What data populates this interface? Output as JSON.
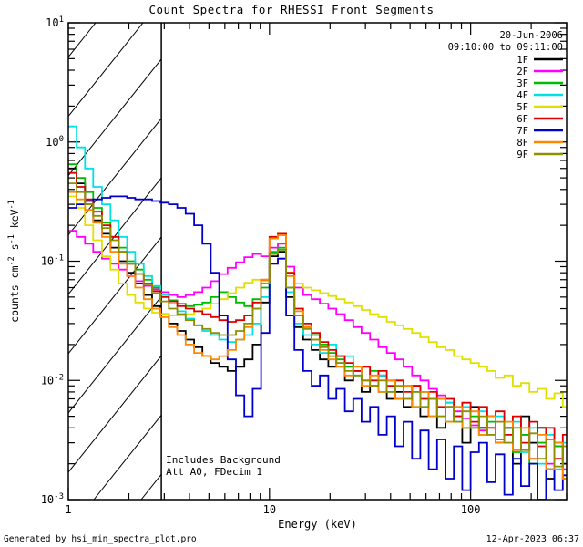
{
  "page": {
    "background": "#ffffff",
    "frame_color": "#000000"
  },
  "footer": {
    "left": "Generated by hsi_min_spectra_plot.pro",
    "right": "12-Apr-2023 06:37"
  },
  "chart_data": {
    "type": "line",
    "title": "Count Spectra for RHESSI Front Segments",
    "xlabel": "Energy (keV)",
    "ylabel": "counts cm^-2 s^-1 keV^-1",
    "ylabel_parts": [
      {
        "text": "counts cm"
      },
      {
        "text": "-2",
        "sup": true
      },
      {
        "text": " s"
      },
      {
        "text": "-1",
        "sup": true
      },
      {
        "text": " keV"
      },
      {
        "text": "-1",
        "sup": true
      }
    ],
    "xscale": "log",
    "yscale": "log",
    "xlim": [
      1,
      300
    ],
    "ylim": [
      0.001,
      10
    ],
    "grid": false,
    "legend_position": "top-right",
    "legend": {
      "date": "20-Jun-2006",
      "time": "09:10:00 to 09:11:00"
    },
    "annotations": [
      "Includes Background",
      "Att A0, FDecim 1"
    ],
    "hatch_region": {
      "xmin": 1,
      "xmax": 2.9
    },
    "x_ticks": [
      {
        "value": 1,
        "label": "1"
      },
      {
        "value": 10,
        "label": "10"
      },
      {
        "value": 100,
        "label": "100"
      }
    ],
    "y_ticks": [
      {
        "value": 10,
        "base": "10",
        "exp": "1"
      },
      {
        "value": 1,
        "base": "10",
        "exp": "0"
      },
      {
        "value": 0.1,
        "base": "10",
        "exp": "-1"
      },
      {
        "value": 0.01,
        "base": "10",
        "exp": "-2"
      },
      {
        "value": 0.001,
        "base": "10",
        "exp": "-3"
      }
    ],
    "x": [
      1.0,
      1.1,
      1.21,
      1.33,
      1.47,
      1.62,
      1.78,
      1.96,
      2.15,
      2.37,
      2.61,
      2.87,
      3.16,
      3.48,
      3.83,
      4.22,
      4.64,
      5.11,
      5.62,
      6.19,
      6.81,
      7.5,
      8.25,
      9.08,
      10.0,
      11.0,
      12.1,
      13.3,
      14.7,
      16.2,
      17.8,
      19.6,
      21.5,
      23.7,
      26.1,
      28.7,
      31.6,
      34.8,
      38.3,
      42.2,
      46.4,
      51.1,
      56.2,
      61.9,
      68.1,
      75.0,
      82.5,
      90.8,
      100,
      110,
      121,
      133,
      147,
      162,
      178,
      196,
      215,
      237,
      261,
      287
    ],
    "series": [
      {
        "name": "1F",
        "color": "#000000",
        "values": [
          0.6,
          0.45,
          0.3,
          0.22,
          0.17,
          0.13,
          0.1,
          0.08,
          0.065,
          0.052,
          0.042,
          0.036,
          0.03,
          0.026,
          0.022,
          0.019,
          0.016,
          0.014,
          0.013,
          0.012,
          0.013,
          0.015,
          0.02,
          0.045,
          0.11,
          0.12,
          0.05,
          0.028,
          0.022,
          0.018,
          0.015,
          0.013,
          0.016,
          0.01,
          0.012,
          0.008,
          0.009,
          0.011,
          0.007,
          0.008,
          0.006,
          0.009,
          0.005,
          0.007,
          0.004,
          0.006,
          0.005,
          0.003,
          0.006,
          0.004,
          0.005,
          0.003,
          0.004,
          0.002,
          0.005,
          0.003,
          0.004,
          0.0015,
          0.003,
          0.002
        ]
      },
      {
        "name": "2F",
        "color": "#ff00ff",
        "values": [
          0.18,
          0.16,
          0.14,
          0.12,
          0.105,
          0.095,
          0.085,
          0.075,
          0.068,
          0.062,
          0.058,
          0.055,
          0.052,
          0.05,
          0.052,
          0.055,
          0.06,
          0.068,
          0.078,
          0.088,
          0.098,
          0.108,
          0.115,
          0.11,
          0.13,
          0.14,
          0.09,
          0.06,
          0.052,
          0.048,
          0.044,
          0.04,
          0.036,
          0.032,
          0.028,
          0.025,
          0.022,
          0.019,
          0.017,
          0.015,
          0.013,
          0.011,
          0.01,
          0.0085,
          0.0075,
          0.0065,
          0.0055,
          0.0048,
          0.0042,
          0.0038,
          0.005,
          0.0032,
          0.004,
          0.0026,
          0.0035,
          0.0022,
          0.003,
          0.002,
          0.0028,
          0.0018
        ]
      },
      {
        "name": "3F",
        "color": "#00bb00",
        "values": [
          0.65,
          0.5,
          0.38,
          0.28,
          0.21,
          0.16,
          0.13,
          0.1,
          0.085,
          0.07,
          0.06,
          0.052,
          0.047,
          0.044,
          0.042,
          0.043,
          0.045,
          0.05,
          0.055,
          0.05,
          0.045,
          0.042,
          0.048,
          0.06,
          0.12,
          0.13,
          0.06,
          0.035,
          0.028,
          0.024,
          0.02,
          0.017,
          0.015,
          0.013,
          0.012,
          0.01,
          0.012,
          0.008,
          0.01,
          0.007,
          0.009,
          0.006,
          0.008,
          0.005,
          0.007,
          0.0045,
          0.006,
          0.004,
          0.005,
          0.0035,
          0.0045,
          0.003,
          0.004,
          0.0025,
          0.0035,
          0.002,
          0.003,
          0.0018,
          0.0028,
          0.0015
        ]
      },
      {
        "name": "4F",
        "color": "#00e0e6",
        "values": [
          1.35,
          0.9,
          0.6,
          0.42,
          0.3,
          0.22,
          0.16,
          0.12,
          0.095,
          0.075,
          0.062,
          0.052,
          0.044,
          0.038,
          0.033,
          0.029,
          0.026,
          0.024,
          0.022,
          0.021,
          0.022,
          0.024,
          0.03,
          0.05,
          0.115,
          0.125,
          0.055,
          0.03,
          0.024,
          0.02,
          0.017,
          0.02,
          0.014,
          0.016,
          0.011,
          0.013,
          0.009,
          0.011,
          0.008,
          0.01,
          0.007,
          0.008,
          0.006,
          0.007,
          0.005,
          0.0065,
          0.0045,
          0.006,
          0.004,
          0.0055,
          0.0035,
          0.005,
          0.003,
          0.0045,
          0.0025,
          0.004,
          0.002,
          0.0035,
          0.0018,
          0.003
        ]
      },
      {
        "name": "5F",
        "color": "#e0e000",
        "values": [
          0.35,
          0.28,
          0.2,
          0.15,
          0.11,
          0.085,
          0.065,
          0.052,
          0.045,
          0.04,
          0.037,
          0.036,
          0.035,
          0.035,
          0.036,
          0.038,
          0.04,
          0.044,
          0.048,
          0.054,
          0.06,
          0.066,
          0.07,
          0.068,
          0.095,
          0.105,
          0.08,
          0.065,
          0.06,
          0.057,
          0.054,
          0.051,
          0.048,
          0.045,
          0.042,
          0.039,
          0.036,
          0.034,
          0.031,
          0.029,
          0.027,
          0.025,
          0.023,
          0.021,
          0.019,
          0.018,
          0.016,
          0.015,
          0.014,
          0.013,
          0.012,
          0.0105,
          0.011,
          0.009,
          0.0095,
          0.008,
          0.0085,
          0.007,
          0.0078,
          0.006
        ]
      },
      {
        "name": "6F",
        "color": "#dd0000",
        "values": [
          0.55,
          0.42,
          0.33,
          0.26,
          0.2,
          0.16,
          0.12,
          0.095,
          0.078,
          0.065,
          0.056,
          0.05,
          0.046,
          0.042,
          0.04,
          0.038,
          0.036,
          0.034,
          0.032,
          0.031,
          0.032,
          0.035,
          0.045,
          0.07,
          0.16,
          0.17,
          0.08,
          0.04,
          0.03,
          0.025,
          0.021,
          0.018,
          0.016,
          0.014,
          0.012,
          0.013,
          0.01,
          0.012,
          0.009,
          0.01,
          0.008,
          0.009,
          0.007,
          0.008,
          0.006,
          0.007,
          0.005,
          0.0065,
          0.0045,
          0.006,
          0.004,
          0.0055,
          0.0035,
          0.005,
          0.003,
          0.0045,
          0.0028,
          0.004,
          0.0022,
          0.0035
        ]
      },
      {
        "name": "7F",
        "color": "#0000cc",
        "values": [
          0.28,
          0.3,
          0.32,
          0.33,
          0.34,
          0.35,
          0.35,
          0.34,
          0.33,
          0.33,
          0.32,
          0.31,
          0.3,
          0.28,
          0.25,
          0.2,
          0.14,
          0.08,
          0.035,
          0.015,
          0.0075,
          0.005,
          0.0085,
          0.025,
          0.095,
          0.105,
          0.035,
          0.018,
          0.012,
          0.009,
          0.011,
          0.007,
          0.0085,
          0.0055,
          0.007,
          0.0045,
          0.006,
          0.0035,
          0.005,
          0.0028,
          0.0045,
          0.0022,
          0.0038,
          0.0018,
          0.0032,
          0.0015,
          0.0028,
          0.0012,
          0.0025,
          0.003,
          0.0014,
          0.0024,
          0.0011,
          0.0022,
          0.0013,
          0.002,
          0.001,
          0.0018,
          0.0012,
          0.0016
        ]
      },
      {
        "name": "8F",
        "color": "#ff8800",
        "values": [
          0.38,
          0.33,
          0.27,
          0.21,
          0.16,
          0.12,
          0.095,
          0.075,
          0.06,
          0.048,
          0.04,
          0.034,
          0.028,
          0.024,
          0.02,
          0.017,
          0.016,
          0.015,
          0.016,
          0.018,
          0.022,
          0.028,
          0.04,
          0.07,
          0.155,
          0.165,
          0.075,
          0.038,
          0.028,
          0.022,
          0.018,
          0.015,
          0.013,
          0.011,
          0.013,
          0.009,
          0.011,
          0.008,
          0.01,
          0.007,
          0.009,
          0.006,
          0.008,
          0.005,
          0.007,
          0.0045,
          0.006,
          0.004,
          0.0055,
          0.0035,
          0.005,
          0.003,
          0.0045,
          0.0026,
          0.004,
          0.0022,
          0.0035,
          0.0018,
          0.003,
          0.0015
        ]
      },
      {
        "name": "9F",
        "color": "#8f8f00",
        "values": [
          0.45,
          0.38,
          0.3,
          0.24,
          0.19,
          0.15,
          0.12,
          0.095,
          0.078,
          0.064,
          0.054,
          0.046,
          0.04,
          0.036,
          0.032,
          0.029,
          0.027,
          0.025,
          0.024,
          0.024,
          0.026,
          0.03,
          0.04,
          0.065,
          0.115,
          0.125,
          0.06,
          0.035,
          0.027,
          0.022,
          0.019,
          0.016,
          0.014,
          0.012,
          0.011,
          0.01,
          0.009,
          0.01,
          0.008,
          0.009,
          0.007,
          0.008,
          0.006,
          0.007,
          0.005,
          0.006,
          0.0045,
          0.0055,
          0.004,
          0.005,
          0.0035,
          0.0045,
          0.003,
          0.004,
          0.0026,
          0.0036,
          0.0022,
          0.0032,
          0.0019,
          0.0028
        ]
      }
    ]
  }
}
